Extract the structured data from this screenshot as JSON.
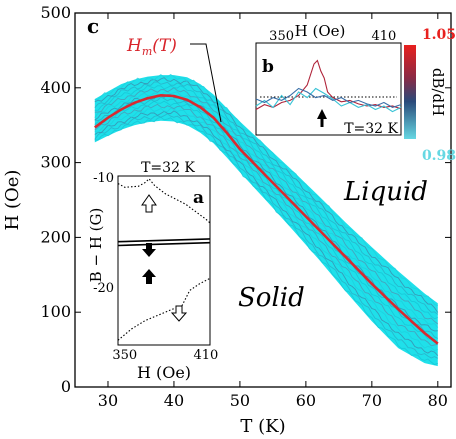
{
  "chart_data": [
    {
      "panel": "c",
      "type": "area",
      "xlabel": "T (K)",
      "ylabel": "H (Oe)",
      "xlim": [
        25,
        82
      ],
      "ylim": [
        0,
        500
      ],
      "x_ticks": [
        30,
        40,
        50,
        60,
        70,
        80
      ],
      "y_ticks": [
        0,
        100,
        200,
        300,
        400,
        500
      ],
      "series": [
        {
          "name": "H_m(T)",
          "x": [
            28,
            30,
            32,
            34,
            36,
            38,
            40,
            42,
            44,
            46,
            48,
            50,
            54,
            58,
            62,
            66,
            70,
            74,
            78,
            80
          ],
          "y": [
            347,
            360,
            371,
            380,
            386,
            390,
            389,
            384,
            374,
            360,
            340,
            318,
            282,
            246,
            210,
            174,
            138,
            104,
            72,
            58
          ]
        },
        {
          "name": "band-upper",
          "x": [
            28,
            30,
            32,
            34,
            36,
            38,
            40,
            42,
            44,
            46,
            48,
            50,
            54,
            58,
            62,
            66,
            70,
            74,
            78,
            80
          ],
          "y": [
            385,
            395,
            405,
            411,
            415,
            417,
            417,
            414,
            405,
            391,
            373,
            355,
            322,
            289,
            255,
            220,
            187,
            155,
            125,
            112
          ]
        },
        {
          "name": "band-lower",
          "x": [
            28,
            30,
            32,
            34,
            36,
            38,
            40,
            42,
            44,
            46,
            48,
            50,
            54,
            58,
            62,
            66,
            70,
            74,
            78,
            80
          ],
          "y": [
            327,
            336,
            344,
            350,
            354,
            356,
            355,
            350,
            340,
            326,
            307,
            287,
            249,
            210,
            170,
            128,
            88,
            52,
            32,
            28
          ]
        }
      ],
      "annotations": {
        "panel_label": "c",
        "hm_label_main": "H",
        "hm_label_sub": "m",
        "hm_label_tail": "(T)",
        "liquid": "Liquid",
        "solid": "Solid"
      }
    },
    {
      "panel": "b",
      "type": "line",
      "xlabel": "H (Oe)",
      "xlim": [
        335,
        420
      ],
      "x_tick_labels": [
        "350",
        "410"
      ],
      "condition": "T=32 K",
      "colorbar": {
        "label": "dB/dH",
        "max_label": "1.05",
        "min_label": "0.98",
        "max_color": "#e8201e",
        "min_color": "#66d8e3"
      },
      "series": [
        {
          "name": "dark-red",
          "x": [
            335,
            340,
            345,
            350,
            355,
            360,
            365,
            367,
            369,
            371,
            373,
            375,
            377,
            380,
            385,
            390,
            395,
            400,
            405,
            410,
            415,
            420
          ],
          "y": [
            0.25,
            0.32,
            0.28,
            0.35,
            0.38,
            0.45,
            0.6,
            0.75,
            0.9,
            0.95,
            0.8,
            0.7,
            0.5,
            0.42,
            0.36,
            0.38,
            0.33,
            0.3,
            0.32,
            0.28,
            0.3,
            0.26
          ]
        },
        {
          "name": "cyan",
          "x": [
            335,
            340,
            345,
            350,
            355,
            360,
            365,
            370,
            375,
            380,
            385,
            390,
            395,
            400,
            405,
            410,
            415,
            420
          ],
          "y": [
            0.3,
            0.38,
            0.28,
            0.45,
            0.32,
            0.5,
            0.42,
            0.55,
            0.48,
            0.4,
            0.3,
            0.35,
            0.28,
            0.32,
            0.25,
            0.3,
            0.22,
            0.28
          ]
        },
        {
          "name": "blue",
          "x": [
            335,
            340,
            345,
            350,
            355,
            360,
            365,
            370,
            375,
            380,
            385,
            390,
            395,
            400,
            405,
            410,
            415,
            420
          ],
          "y": [
            0.4,
            0.35,
            0.42,
            0.38,
            0.45,
            0.55,
            0.5,
            0.42,
            0.45,
            0.38,
            0.42,
            0.35,
            0.38,
            0.33,
            0.3,
            0.35,
            0.28,
            0.32
          ]
        }
      ]
    },
    {
      "panel": "a",
      "type": "line",
      "xlabel": "H (Oe)",
      "ylabel": "B − H (G)",
      "xlim": [
        345,
        413
      ],
      "ylim": [
        -28,
        -10
      ],
      "x_tick_labels": [
        "350",
        "410"
      ],
      "y_tick_labels": [
        "-10",
        "-20"
      ],
      "condition": "T=32 K",
      "series": [
        {
          "name": "upper-dotted",
          "x": [
            345,
            350,
            360,
            365,
            368,
            372,
            380,
            395,
            410,
            413
          ],
          "y": [
            -10.8,
            -11.2,
            -11.1,
            -10.7,
            -10.3,
            -11.0,
            -11.9,
            -13.0,
            -14.6,
            -15.0
          ]
        },
        {
          "name": "solid-1",
          "x": [
            345,
            413
          ],
          "y": [
            -17.0,
            -16.7
          ]
        },
        {
          "name": "solid-2",
          "x": [
            345,
            413
          ],
          "y": [
            -17.4,
            -17.1
          ]
        },
        {
          "name": "lower-dotted",
          "x": [
            345,
            355,
            365,
            375,
            385,
            392,
            398,
            405,
            413
          ],
          "y": [
            -27.5,
            -26.3,
            -25.4,
            -24.8,
            -24.2,
            -23.9,
            -22.2,
            -21.5,
            -20.9
          ]
        }
      ]
    }
  ]
}
